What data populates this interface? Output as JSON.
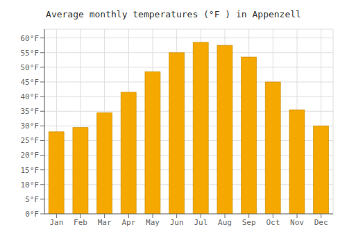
{
  "chart_data": {
    "type": "bar",
    "title": "Average monthly temperatures (°F ) in Appenzell",
    "categories": [
      "Jan",
      "Feb",
      "Mar",
      "Apr",
      "May",
      "Jun",
      "Jul",
      "Aug",
      "Sep",
      "Oct",
      "Nov",
      "Dec"
    ],
    "values": [
      28,
      29.5,
      34.5,
      41.5,
      48.5,
      55,
      58.5,
      57.5,
      53.5,
      45,
      35.5,
      30
    ],
    "color": "#F5A800",
    "ylim": [
      0,
      63
    ],
    "yticks": [
      {
        "value": 0,
        "label": "0°F"
      },
      {
        "value": 5,
        "label": "5°F"
      },
      {
        "value": 10,
        "label": "10°F"
      },
      {
        "value": 15,
        "label": "15°F"
      },
      {
        "value": 20,
        "label": "20°F"
      },
      {
        "value": 25,
        "label": "25°F"
      },
      {
        "value": 30,
        "label": "30°F"
      },
      {
        "value": 35,
        "label": "35°F"
      },
      {
        "value": 40,
        "label": "40°F"
      },
      {
        "value": 45,
        "label": "45°F"
      },
      {
        "value": 50,
        "label": "50°F"
      },
      {
        "value": 55,
        "label": "55°F"
      },
      {
        "value": 60,
        "label": "60°F"
      }
    ],
    "grid": true
  }
}
